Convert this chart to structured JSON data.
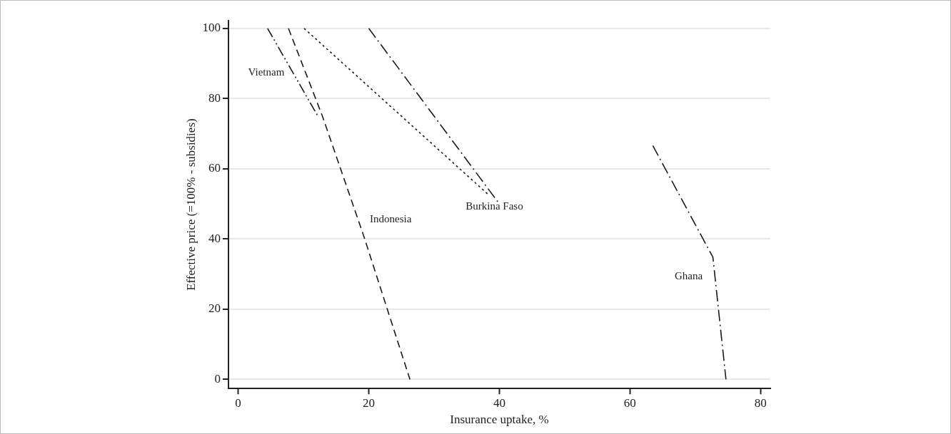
{
  "chart_data": {
    "type": "line",
    "xlabel": "Insurance uptake, %",
    "ylabel": "Effective price (=100% - subsidies)",
    "xlim": [
      -1.5,
      81.5
    ],
    "ylim": [
      -2.6,
      102.2
    ],
    "xticks": [
      0,
      20,
      40,
      60,
      80
    ],
    "yticks": [
      0,
      20,
      40,
      60,
      80,
      100
    ],
    "grid": "y",
    "legend": false,
    "marker": "none",
    "series": [
      {
        "name": "Vietnam",
        "color": "#1a1a1a",
        "line_style": "dashdotdot",
        "x": [
          4.5,
          12.2
        ],
        "values": [
          100,
          75
        ]
      },
      {
        "name": "Indonesia",
        "color": "#1a1a1a",
        "line_style": "dashed",
        "x": [
          7.7,
          12.9,
          19.2,
          26.3
        ],
        "values": [
          100,
          75,
          41,
          0
        ]
      },
      {
        "color": "#1a1a1a",
        "line_style": "dotted",
        "x": [
          10.1,
          38.4
        ],
        "values": [
          100,
          52.5
        ]
      },
      {
        "name": "Burkina Faso",
        "color": "#1a1a1a",
        "line_style": "dashdot",
        "x": [
          20,
          40
        ],
        "values": [
          100,
          50
        ]
      },
      {
        "name": "Ghana",
        "color": "#1a1a1a",
        "line_style": "dashdot",
        "x": [
          63.5,
          72.7,
          74.7
        ],
        "values": [
          66.6,
          34.8,
          0
        ]
      }
    ]
  }
}
